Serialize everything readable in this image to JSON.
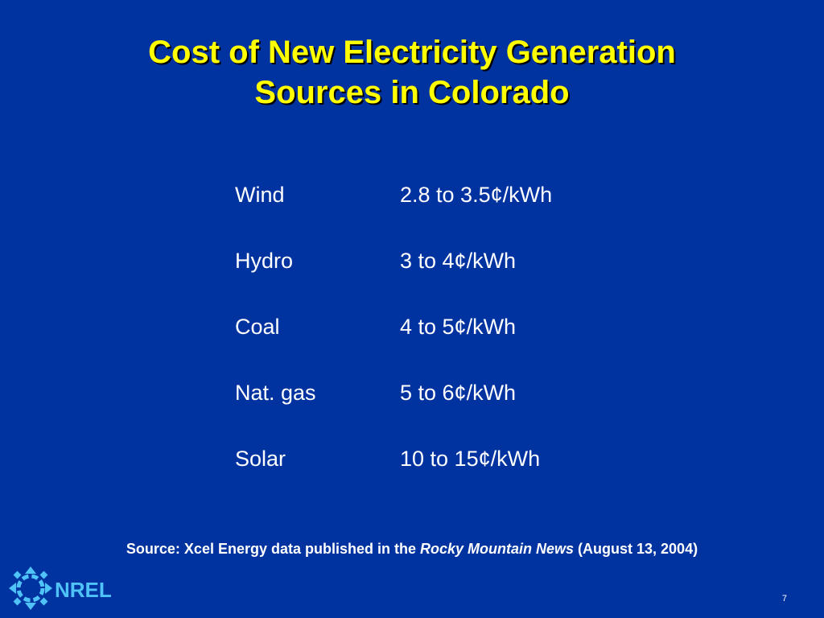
{
  "title": {
    "line1": "Cost of New Electricity Generation",
    "line2": "Sources in Colorado"
  },
  "rows": [
    {
      "label": "Wind",
      "value": "2.8 to 3.5¢/kWh"
    },
    {
      "label": "Hydro",
      "value": "3 to 4¢/kWh"
    },
    {
      "label": "Coal",
      "value": "4 to 5¢/kWh"
    },
    {
      "label": "Nat. gas",
      "value": "5 to 6¢/kWh"
    },
    {
      "label": "Solar",
      "value": "10 to 15¢/kWh"
    }
  ],
  "source": {
    "prefix": "Source: Xcel Energy data published in the ",
    "publication": "Rocky Mountain News",
    "suffix": " (August 13, 2004)"
  },
  "logo": {
    "text": "NREL",
    "icon": "nrel-logo-icon"
  },
  "page_number": "7",
  "colors": {
    "background": "#0033a0",
    "title": "#ffff00",
    "text": "#ffffff",
    "logo": "#4fc3f7"
  }
}
